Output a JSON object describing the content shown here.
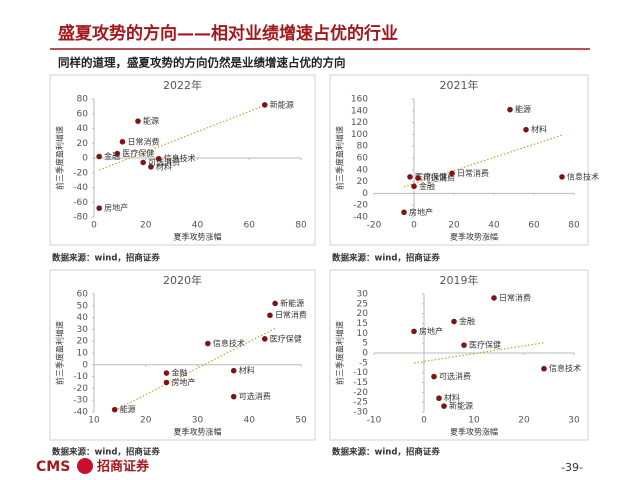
{
  "header": {
    "title": "盛夏攻势的方向——相对业绩增速占优的行业",
    "subtitle": "同样的道理，盛夏攻势的方向仍然是业绩增速占优的方向"
  },
  "chart_data": [
    {
      "type": "scatter",
      "title": "2022年",
      "xlabel": "夏季攻势涨幅",
      "ylabel": "前三季度盈利增速",
      "color": "#7f1416",
      "labels": [
        "新能源",
        "能源",
        "日常消费",
        "金融",
        "医疗保健",
        "信息技术",
        "可选消费",
        "材料",
        "房地产"
      ],
      "x": [
        66,
        17,
        11,
        2,
        9,
        25,
        19,
        22,
        2
      ],
      "values": [
        72,
        50,
        22,
        2,
        6,
        -1,
        -6,
        -12,
        -68
      ],
      "xlim": [
        0,
        80
      ],
      "xticks": [
        0,
        20,
        40,
        60,
        80
      ],
      "ylim": [
        -80,
        80
      ],
      "yticks": [
        -80,
        -60,
        -40,
        -20,
        0,
        20,
        40,
        60,
        80
      ]
    },
    {
      "type": "scatter",
      "title": "2021年",
      "xlabel": "夏季攻势涨幅",
      "ylabel": "前三季度盈利增速",
      "color": "#7f1416",
      "labels": [
        "能源",
        "材料",
        "信息技术",
        "医疗保健",
        "可选消费",
        "日常消费",
        "金融",
        "房地产"
      ],
      "x": [
        48,
        56,
        74,
        -2,
        2,
        19,
        0,
        -5
      ],
      "values": [
        142,
        108,
        28,
        28,
        26,
        34,
        12,
        -32
      ],
      "xlim": [
        -20,
        80
      ],
      "xticks": [
        -20,
        0,
        20,
        40,
        60,
        80
      ],
      "ylim": [
        -40,
        160
      ],
      "yticks": [
        -40,
        -20,
        0,
        20,
        40,
        60,
        80,
        100,
        120,
        140,
        160
      ]
    },
    {
      "type": "scatter",
      "title": "2020年",
      "xlabel": "夏季攻势涨幅",
      "ylabel": "前三季度盈利增速",
      "color": "#7f1416",
      "labels": [
        "新能源",
        "日常消费",
        "医疗保健",
        "信息技术",
        "材料",
        "金融",
        "房地产",
        "可选消费",
        "能源"
      ],
      "x": [
        45,
        44,
        43,
        32,
        37,
        24,
        24,
        37,
        14
      ],
      "values": [
        52,
        42,
        22,
        18,
        -5,
        -7,
        -15,
        -27,
        -38
      ],
      "xlim": [
        10,
        50
      ],
      "xticks": [
        10,
        20,
        30,
        40,
        50
      ],
      "ylim": [
        -40,
        60
      ],
      "yticks": [
        -40,
        -30,
        -20,
        -10,
        0,
        10,
        20,
        30,
        40,
        50,
        60
      ]
    },
    {
      "type": "scatter",
      "title": "2019年",
      "xlabel": "夏季攻势涨幅",
      "ylabel": "前三季度盈利增速",
      "color": "#7f1416",
      "labels": [
        "日常消费",
        "金融",
        "房地产",
        "医疗保健",
        "信息技术",
        "可选消费",
        "材料",
        "新能源"
      ],
      "x": [
        14,
        6,
        -2,
        8,
        24,
        2,
        3,
        4
      ],
      "values": [
        28,
        16,
        11,
        4,
        -8,
        -12,
        -23,
        -27
      ],
      "xlim": [
        -10,
        30
      ],
      "xticks": [
        -10,
        0,
        10,
        20,
        30
      ],
      "ylim": [
        -30,
        30
      ],
      "yticks": [
        -30,
        -25,
        -20,
        -15,
        -10,
        -5,
        0,
        5,
        10,
        15,
        20,
        25,
        30
      ]
    }
  ],
  "sources": [
    "数据来源：wind，招商证券",
    "数据来源：wind，招商证券",
    "数据来源：wind，招商证券",
    "数据来源：wind，招商证券"
  ],
  "footer": {
    "logo": "CMS",
    "logo_cn": "招商证券",
    "page": "-39-"
  }
}
